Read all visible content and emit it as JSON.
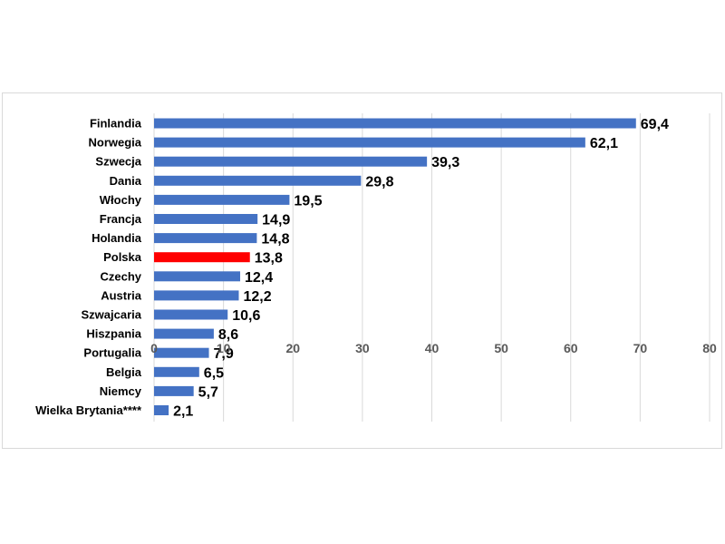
{
  "chart_data": {
    "type": "bar",
    "orientation": "horizontal",
    "categories": [
      "Finlandia",
      "Norwegia",
      "Szwecja",
      "Dania",
      "Włochy",
      "Francja",
      "Holandia",
      "Polska",
      "Czechy",
      "Austria",
      "Szwajcaria",
      "Hiszpania",
      "Portugalia",
      "Belgia",
      "Niemcy",
      "Wielka Brytania****"
    ],
    "values": [
      69.4,
      62.1,
      39.3,
      29.8,
      19.5,
      14.9,
      14.8,
      13.8,
      12.4,
      12.2,
      10.6,
      8.6,
      7.9,
      6.5,
      5.7,
      2.1
    ],
    "value_labels": [
      "69,4",
      "62,1",
      "39,3",
      "29,8",
      "19,5",
      "14,9",
      "14,8",
      "13,8",
      "12,4",
      "12,2",
      "10,6",
      "8,6",
      "7,9",
      "6,5",
      "5,7",
      "2,1"
    ],
    "highlight_category": "Polska",
    "xlim": [
      0,
      80
    ],
    "xticks": [
      0,
      10,
      20,
      30,
      40,
      50,
      60,
      70,
      80
    ],
    "grid": true,
    "legend": "none",
    "colors": {
      "bar": "#4472c4",
      "highlight": "#ff0000",
      "grid": "#d9d9d9",
      "tick_text": "#595959"
    }
  }
}
